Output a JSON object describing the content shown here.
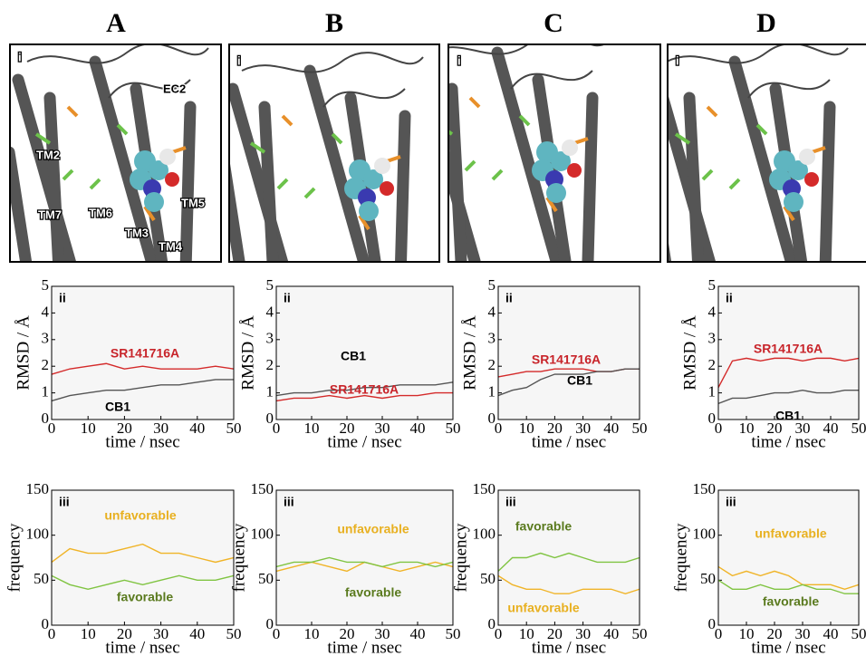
{
  "panels": [
    {
      "letter": "A",
      "label": "i",
      "annotations": [
        "EC2",
        "TM2",
        "TM7",
        "TM6",
        "TM3",
        "TM4",
        "TM5"
      ]
    },
    {
      "letter": "B",
      "label": "i"
    },
    {
      "letter": "C",
      "label": "i"
    },
    {
      "letter": "D",
      "label": "i"
    }
  ],
  "chart_data": [
    {
      "type": "line",
      "panel_label": "ii",
      "xlabel": "time / nsec",
      "ylabel": "RMSD / Å",
      "xlim": [
        0,
        50
      ],
      "ylim": [
        0,
        5
      ],
      "xticks": [
        0,
        10,
        20,
        30,
        40,
        50
      ],
      "yticks": [
        0,
        1,
        2,
        3,
        4,
        5
      ],
      "x": [
        0,
        5,
        10,
        15,
        20,
        25,
        30,
        35,
        40,
        45,
        50
      ],
      "series": [
        {
          "name": "SR141716A",
          "color": "#d42a2a",
          "label_color": "#c8242a",
          "values": [
            1.7,
            1.9,
            2.0,
            2.1,
            1.9,
            2.0,
            1.9,
            1.9,
            1.9,
            2.0,
            1.9
          ]
        },
        {
          "name": "CB1",
          "color": "#555555",
          "label_color": "#000000",
          "values": [
            0.7,
            0.9,
            1.0,
            1.1,
            1.1,
            1.2,
            1.3,
            1.3,
            1.4,
            1.5,
            1.5
          ]
        }
      ]
    },
    {
      "type": "line",
      "panel_label": "ii",
      "xlabel": "time / nsec",
      "ylabel": "RMSD / Å",
      "xlim": [
        0,
        50
      ],
      "ylim": [
        0,
        5
      ],
      "xticks": [
        0,
        10,
        20,
        30,
        40,
        50
      ],
      "yticks": [
        0,
        1,
        2,
        3,
        4,
        5
      ],
      "x": [
        0,
        5,
        10,
        15,
        20,
        25,
        30,
        35,
        40,
        45,
        50
      ],
      "series": [
        {
          "name": "CB1",
          "color": "#555555",
          "label_color": "#000000",
          "values": [
            0.9,
            1.0,
            1.0,
            1.1,
            1.1,
            1.2,
            1.2,
            1.3,
            1.3,
            1.3,
            1.4
          ]
        },
        {
          "name": "SR141716A",
          "color": "#d42a2a",
          "label_color": "#c8242a",
          "values": [
            0.7,
            0.8,
            0.8,
            0.9,
            0.8,
            0.9,
            0.8,
            0.9,
            0.9,
            1.0,
            1.0
          ]
        }
      ]
    },
    {
      "type": "line",
      "panel_label": "ii",
      "xlabel": "time / nsec",
      "ylabel": "RMSD / Å",
      "xlim": [
        0,
        50
      ],
      "ylim": [
        0,
        5
      ],
      "xticks": [
        0,
        10,
        20,
        30,
        40,
        50
      ],
      "yticks": [
        0,
        1,
        2,
        3,
        4,
        5
      ],
      "x": [
        0,
        5,
        10,
        15,
        20,
        25,
        30,
        35,
        40,
        45,
        50
      ],
      "series": [
        {
          "name": "SR141716A",
          "color": "#d42a2a",
          "label_color": "#c8242a",
          "values": [
            1.6,
            1.7,
            1.8,
            1.8,
            1.9,
            1.9,
            1.9,
            1.8,
            1.8,
            1.9,
            1.9
          ]
        },
        {
          "name": "CB1",
          "color": "#555555",
          "label_color": "#000000",
          "values": [
            0.9,
            1.1,
            1.2,
            1.5,
            1.7,
            1.7,
            1.7,
            1.8,
            1.8,
            1.9,
            1.9
          ]
        }
      ]
    },
    {
      "type": "line",
      "panel_label": "ii",
      "xlabel": "time / nsec",
      "ylabel": "RMSD / Å",
      "xlim": [
        0,
        50
      ],
      "ylim": [
        0,
        5
      ],
      "xticks": [
        0,
        10,
        20,
        30,
        40,
        50
      ],
      "yticks": [
        0,
        1,
        2,
        3,
        4,
        5
      ],
      "x": [
        0,
        5,
        10,
        15,
        20,
        25,
        30,
        35,
        40,
        45,
        50
      ],
      "series": [
        {
          "name": "SR141716A",
          "color": "#d42a2a",
          "label_color": "#c8242a",
          "values": [
            1.2,
            2.2,
            2.3,
            2.2,
            2.3,
            2.3,
            2.2,
            2.3,
            2.3,
            2.2,
            2.3
          ]
        },
        {
          "name": "CB1",
          "color": "#555555",
          "label_color": "#000000",
          "values": [
            0.6,
            0.8,
            0.8,
            0.9,
            1.0,
            1.0,
            1.1,
            1.0,
            1.0,
            1.1,
            1.1
          ]
        }
      ]
    },
    {
      "type": "line",
      "panel_label": "iii",
      "xlabel": "time / nsec",
      "ylabel": "frequency",
      "xlim": [
        0,
        50
      ],
      "ylim": [
        0,
        150
      ],
      "xticks": [
        0,
        10,
        20,
        30,
        40,
        50
      ],
      "yticks": [
        0,
        50,
        100,
        150
      ],
      "x": [
        0,
        5,
        10,
        15,
        20,
        25,
        30,
        35,
        40,
        45,
        50
      ],
      "series": [
        {
          "name": "unfavorable",
          "color": "#f0b428",
          "label_color": "#e8b020",
          "values": [
            70,
            85,
            80,
            80,
            85,
            90,
            80,
            80,
            75,
            70,
            75
          ]
        },
        {
          "name": "favorable",
          "color": "#80c442",
          "label_color": "#5a7a1e",
          "values": [
            55,
            45,
            40,
            45,
            50,
            45,
            50,
            55,
            50,
            50,
            55
          ]
        }
      ]
    },
    {
      "type": "line",
      "panel_label": "iii",
      "xlabel": "time / nsec",
      "ylabel": "frequency",
      "xlim": [
        0,
        50
      ],
      "ylim": [
        0,
        150
      ],
      "xticks": [
        0,
        10,
        20,
        30,
        40,
        50
      ],
      "yticks": [
        0,
        50,
        100,
        150
      ],
      "x": [
        0,
        5,
        10,
        15,
        20,
        25,
        30,
        35,
        40,
        45,
        50
      ],
      "series": [
        {
          "name": "unfavorable",
          "color": "#f0b428",
          "label_color": "#e8b020",
          "values": [
            60,
            65,
            70,
            65,
            60,
            70,
            65,
            60,
            65,
            70,
            65
          ]
        },
        {
          "name": "favorable",
          "color": "#80c442",
          "label_color": "#5a7a1e",
          "values": [
            65,
            70,
            70,
            75,
            70,
            70,
            65,
            70,
            70,
            65,
            70
          ]
        }
      ]
    },
    {
      "type": "line",
      "panel_label": "iii",
      "xlabel": "time / nsec",
      "ylabel": "frequency",
      "xlim": [
        0,
        50
      ],
      "ylim": [
        0,
        150
      ],
      "xticks": [
        0,
        10,
        20,
        30,
        40,
        50
      ],
      "yticks": [
        0,
        50,
        100,
        150
      ],
      "x": [
        0,
        5,
        10,
        15,
        20,
        25,
        30,
        35,
        40,
        45,
        50
      ],
      "series": [
        {
          "name": "favorable",
          "color": "#80c442",
          "label_color": "#5a7a1e",
          "values": [
            60,
            75,
            75,
            80,
            75,
            80,
            75,
            70,
            70,
            70,
            75
          ]
        },
        {
          "name": "unfavorable",
          "color": "#f0b428",
          "label_color": "#e8b020",
          "values": [
            55,
            45,
            40,
            40,
            35,
            35,
            40,
            40,
            40,
            35,
            40
          ]
        }
      ]
    },
    {
      "type": "line",
      "panel_label": "iii",
      "xlabel": "time / nsec",
      "ylabel": "frequency",
      "xlim": [
        0,
        50
      ],
      "ylim": [
        0,
        150
      ],
      "xticks": [
        0,
        10,
        20,
        30,
        40,
        50
      ],
      "yticks": [
        0,
        50,
        100,
        150
      ],
      "x": [
        0,
        5,
        10,
        15,
        20,
        25,
        30,
        35,
        40,
        45,
        50
      ],
      "series": [
        {
          "name": "unfavorable",
          "color": "#f0b428",
          "label_color": "#e8b020",
          "values": [
            65,
            55,
            60,
            55,
            60,
            55,
            45,
            45,
            45,
            40,
            45
          ]
        },
        {
          "name": "favorable",
          "color": "#80c442",
          "label_color": "#5a7a1e",
          "values": [
            50,
            40,
            40,
            45,
            40,
            40,
            45,
            40,
            40,
            35,
            35
          ]
        }
      ]
    }
  ]
}
